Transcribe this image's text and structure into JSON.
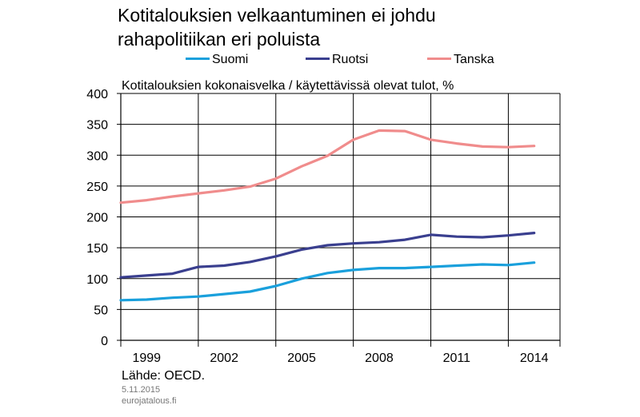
{
  "header": {
    "title_line1": "Kotitalouksien velkaantuminen ei johdu",
    "title_line2": "rahapolitiikan eri poluista",
    "subtitle": "Kotitalouksien kokonaisvelka / käytettävissä olevat tulot, %"
  },
  "footer": {
    "source": "Lähde: OECD.",
    "date": "5.11.2015",
    "site": "eurojatalous.fi"
  },
  "chart_data": {
    "type": "line",
    "title": "Kotitalouksien velkaantuminen ei johdu rahapolitiikan eri poluista",
    "ylabel": "Kotitalouksien kokonaisvelka / käytettävissä olevat tulot, %",
    "xlabel": "",
    "x": [
      1998,
      1999,
      2000,
      2001,
      2002,
      2003,
      2004,
      2005,
      2006,
      2007,
      2008,
      2009,
      2010,
      2011,
      2012,
      2013,
      2014
    ],
    "xlim": [
      1998,
      2015
    ],
    "ylim": [
      0,
      400
    ],
    "yticks": [
      "0",
      "50",
      "100",
      "150",
      "200",
      "250",
      "300",
      "350",
      "400"
    ],
    "xticks": [
      "1999",
      "2002",
      "2005",
      "2008",
      "2011",
      "2014"
    ],
    "xtick_values": [
      1999,
      2002,
      2005,
      2008,
      2011,
      2014
    ],
    "x_grid_lines": [
      1998,
      2001,
      2004,
      2007,
      2010,
      2013,
      2015
    ],
    "grid": true,
    "legend_position": "top",
    "series": [
      {
        "name": "Suomi",
        "color": "#1aa0dc",
        "values": [
          65,
          66,
          69,
          71,
          75,
          79,
          88,
          100,
          109,
          114,
          117,
          117,
          119,
          121,
          123,
          122,
          126
        ]
      },
      {
        "name": "Ruotsi",
        "color": "#3a3f8f",
        "values": [
          102,
          105,
          108,
          119,
          121,
          127,
          136,
          147,
          154,
          157,
          159,
          163,
          171,
          168,
          167,
          170,
          174
        ]
      },
      {
        "name": "Tanska",
        "color": "#f08c8c",
        "values": [
          223,
          227,
          233,
          238,
          243,
          249,
          262,
          282,
          299,
          325,
          340,
          339,
          325,
          319,
          314,
          313,
          315
        ]
      }
    ]
  }
}
